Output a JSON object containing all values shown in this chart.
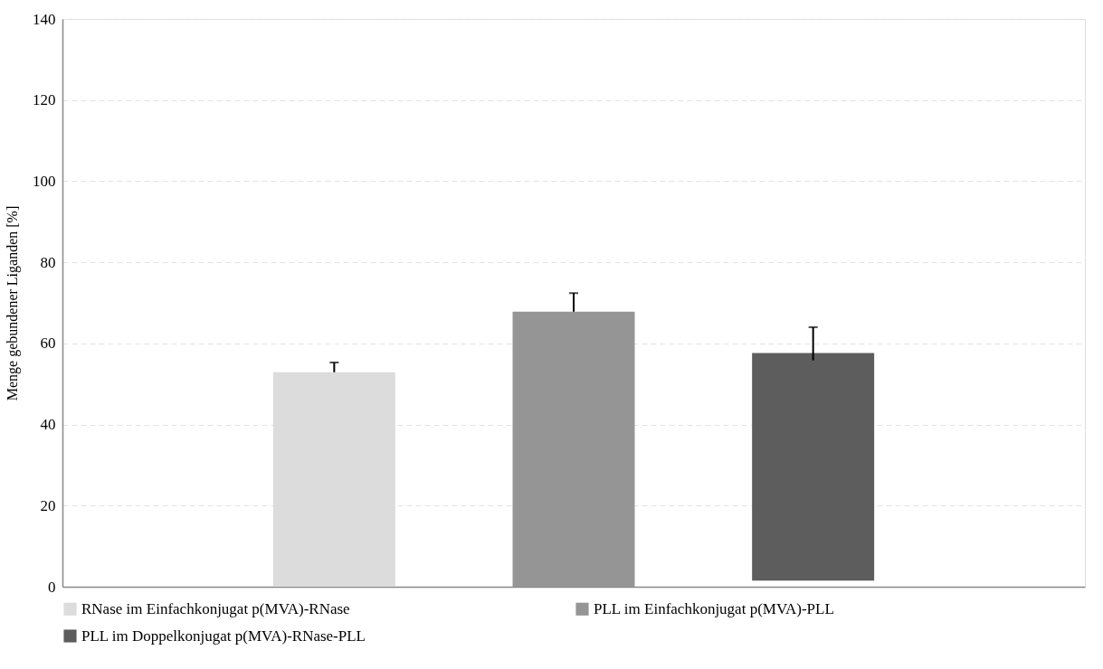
{
  "chart_data": {
    "type": "bar",
    "ylabel": "Menge gebundener Liganden [%]",
    "categories": [
      null,
      null,
      null
    ],
    "series": [
      {
        "name": "RNase im Einfachkonjugat p(MVA)-RNase",
        "color": "#dcdcdc",
        "values": [
          52.9,
          null,
          null
        ],
        "base": [
          0,
          null,
          null
        ],
        "errors": [
          [
            52.9,
            55.3
          ],
          null,
          null
        ]
      },
      {
        "name": "PLL im Einfachkonjugat p(MVA)-PLL",
        "color": "#959595",
        "values": [
          null,
          67.8,
          null
        ],
        "base": [
          null,
          0,
          null
        ],
        "errors": [
          null,
          [
            67.8,
            72.4
          ],
          null
        ]
      },
      {
        "name": "PLL im Doppelkonjugat p(MVA)-RNase-PLL",
        "color": "#5d5d5d",
        "values": [
          null,
          null,
          56.1
        ],
        "base": [
          null,
          null,
          1.5
        ],
        "errors": [
          null,
          null,
          [
            55.8,
            64
          ]
        ]
      }
    ],
    "ylim": [
      0,
      140
    ],
    "yticks": [
      0,
      20,
      40,
      60,
      80,
      100,
      120,
      140
    ],
    "grid": "y",
    "legend": "bottom"
  }
}
